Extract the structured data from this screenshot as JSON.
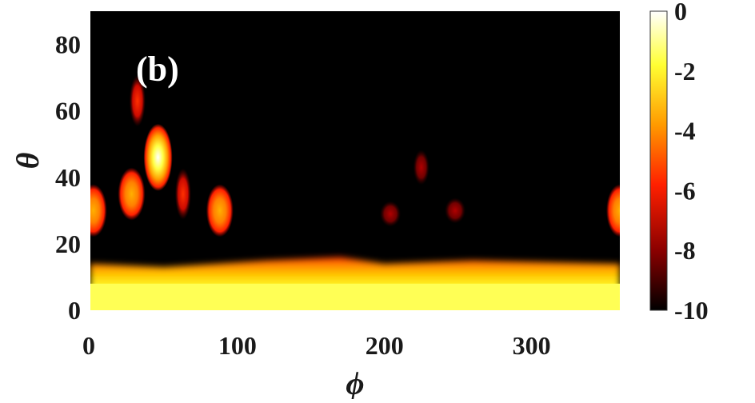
{
  "chart_data": {
    "type": "heatmap",
    "panel_label": "(b)",
    "xlabel": "ϕ",
    "ylabel": "θ",
    "xlim": [
      0,
      360
    ],
    "ylim": [
      0,
      90
    ],
    "xticks": [
      "0",
      "100",
      "200",
      "300"
    ],
    "yticks": [
      "0",
      "20",
      "40",
      "60",
      "80"
    ],
    "colorbar": {
      "range": [
        -10,
        0
      ],
      "ticks": [
        "0",
        "-2",
        "-4",
        "-6",
        "-8",
        "-10"
      ],
      "colormap": "hot",
      "colors": [
        "#000000",
        "#8b0000",
        "#ff2000",
        "#ff9a00",
        "#ffff33",
        "#ffffff"
      ]
    },
    "main_band": {
      "theta_top_by_phi": [
        {
          "phi": 0,
          "theta": 14
        },
        {
          "phi": 50,
          "theta": 13
        },
        {
          "phi": 120,
          "theta": 15
        },
        {
          "phi": 170,
          "theta": 16
        },
        {
          "phi": 200,
          "theta": 14
        },
        {
          "phi": 260,
          "theta": 15
        },
        {
          "phi": 360,
          "theta": 14
        }
      ],
      "value_near_theta_0": 0,
      "value_at_top_edge": -5
    },
    "lobes": [
      {
        "phi": 46,
        "theta": 46,
        "value": -1.0
      },
      {
        "phi": 32,
        "theta": 63,
        "value": -7.0
      },
      {
        "phi": 28,
        "theta": 35,
        "value": -5.0
      },
      {
        "phi": 63,
        "theta": 35,
        "value": -5.5
      },
      {
        "phi": 88,
        "theta": 30,
        "value": -4.5
      },
      {
        "phi": 2,
        "theta": 30,
        "value": -4.0
      },
      {
        "phi": 360,
        "theta": 30,
        "value": -4.0
      },
      {
        "phi": 225,
        "theta": 43,
        "value": -8.0
      },
      {
        "phi": 204,
        "theta": 29,
        "value": -8.2
      },
      {
        "phi": 248,
        "theta": 30,
        "value": -8.2
      }
    ]
  }
}
